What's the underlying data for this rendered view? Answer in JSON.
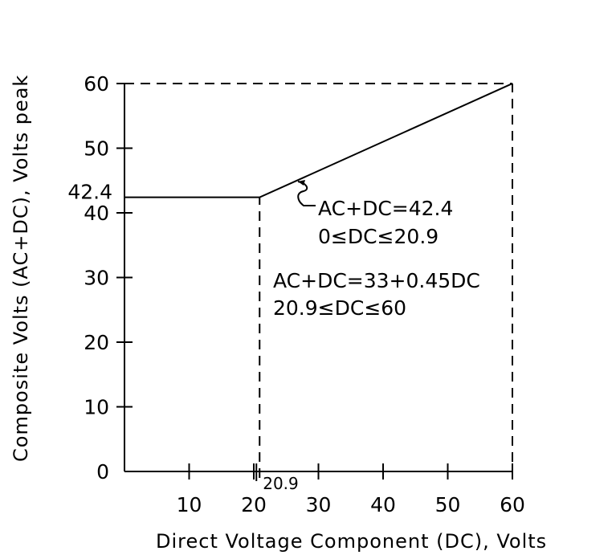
{
  "chart_data": {
    "type": "line",
    "xlabel": "Direct Voltage Component (DC), Volts",
    "ylabel": "Composite Volts (AC+DC), Volts peak",
    "xlim": [
      0,
      60
    ],
    "ylim": [
      0,
      60
    ],
    "x_ticks": [
      10,
      20,
      30,
      40,
      50,
      60
    ],
    "y_ticks": [
      0,
      10,
      20,
      30,
      40,
      50,
      60
    ],
    "series": [
      {
        "x": [
          0,
          20.9,
          60
        ],
        "y": [
          42.4,
          42.4,
          60
        ]
      }
    ],
    "reference_lines": {
      "vertical": [
        20.9,
        60
      ],
      "horizontal": [
        60
      ]
    },
    "labels": {
      "y_break_value": "42.4",
      "x_break_value": "20.9"
    },
    "annotations": [
      {
        "lines": [
          "AC+DC=42.4",
          "0≤DC≤20.9"
        ]
      },
      {
        "lines": [
          "AC+DC=33+0.45DC",
          "20.9≤DC≤60"
        ]
      }
    ]
  }
}
